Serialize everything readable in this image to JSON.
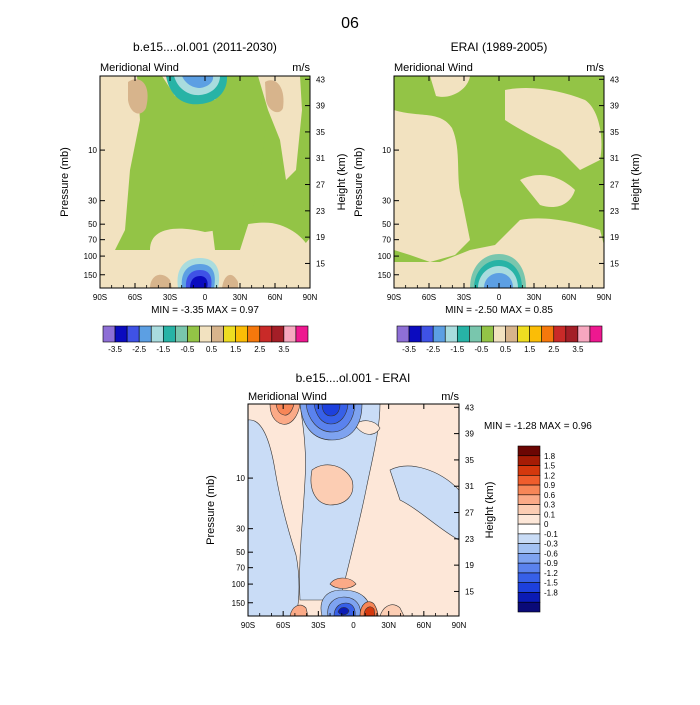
{
  "figure_title": "06",
  "colors": {
    "abs_scale": [
      "#8e6fd6",
      "#0b0bbf",
      "#3f52e6",
      "#5c9fe3",
      "#a9dcde",
      "#27b3a6",
      "#79c6ad",
      "#93c446",
      "#f2e2c0",
      "#d7b48c",
      "#eedd21",
      "#fbbd06",
      "#f5780c",
      "#c92a28",
      "#a41e27",
      "#f7a7bf",
      "#ee1890"
    ],
    "diff_scale": [
      "#0a0a78",
      "#0b1bb4",
      "#1d40dd",
      "#3760e8",
      "#5a82ee",
      "#7ea3f0",
      "#a3c2f3",
      "#c9dcf6",
      "#ffffff",
      "#fde7d8",
      "#fccdb3",
      "#fbaa87",
      "#f78657",
      "#ef5d2c",
      "#d4380d",
      "#a51c05",
      "#6b0603"
    ]
  },
  "panels": [
    {
      "id": "left",
      "title": "b.e15....ol.001 (2011-2030)",
      "left_label": "Meridional Wind",
      "right_label": "m/s",
      "stats": "MIN = -3.35  MAX =  0.97"
    },
    {
      "id": "right",
      "title": "ERAI (1989-2005)",
      "left_label": "Meridional Wind",
      "right_label": "m/s",
      "stats": "MIN = -2.50  MAX =  0.85"
    },
    {
      "id": "diff",
      "title": "b.e15....ol.001 - ERAI",
      "left_label": "Meridional Wind",
      "right_label": "m/s",
      "stats": "MIN = -1.28  MAX =  0.96"
    }
  ],
  "chart_data": [
    {
      "type": "heatmap",
      "title": "b.e15....ol.001 (2011-2030)",
      "xlabel": "",
      "ylabel": "Pressure (mb)",
      "y2label": "Height (km)",
      "x_ticks": [
        "90S",
        "60S",
        "30S",
        "0",
        "30N",
        "60N",
        "90N"
      ],
      "x_values": [
        -90,
        -60,
        -30,
        0,
        30,
        60,
        90
      ],
      "y_ticks": [
        "10",
        "30",
        "50",
        "70",
        "100",
        "150"
      ],
      "y_values": [
        10,
        30,
        50,
        70,
        100,
        150
      ],
      "y2_ticks": [
        "43",
        "39",
        "35",
        "31",
        "27",
        "23",
        "19",
        "15"
      ],
      "colorbar_levels": [
        "-3.5",
        "-2.5",
        "-1.5",
        "-0.5",
        "0.5",
        "1.5",
        "2.5",
        "3.5"
      ],
      "min": -3.35,
      "max": 0.97
    },
    {
      "type": "heatmap",
      "title": "ERAI (1989-2005)",
      "xlabel": "",
      "ylabel": "Pressure (mb)",
      "y2label": "Height (km)",
      "x_ticks": [
        "90S",
        "60S",
        "30S",
        "0",
        "30N",
        "60N",
        "90N"
      ],
      "x_values": [
        -90,
        -60,
        -30,
        0,
        30,
        60,
        90
      ],
      "y_ticks": [
        "10",
        "30",
        "50",
        "70",
        "100",
        "150"
      ],
      "y_values": [
        10,
        30,
        50,
        70,
        100,
        150
      ],
      "y2_ticks": [
        "43",
        "39",
        "35",
        "31",
        "27",
        "23",
        "19",
        "15"
      ],
      "colorbar_levels": [
        "-3.5",
        "-2.5",
        "-1.5",
        "-0.5",
        "0.5",
        "1.5",
        "2.5",
        "3.5"
      ],
      "min": -2.5,
      "max": 0.85
    },
    {
      "type": "heatmap",
      "title": "b.e15....ol.001 - ERAI",
      "xlabel": "",
      "ylabel": "Pressure (mb)",
      "y2label": "Height (km)",
      "x_ticks": [
        "90S",
        "60S",
        "30S",
        "0",
        "30N",
        "60N",
        "90N"
      ],
      "x_values": [
        -90,
        -60,
        -30,
        0,
        30,
        60,
        90
      ],
      "y_ticks": [
        "10",
        "30",
        "50",
        "70",
        "100",
        "150"
      ],
      "y_values": [
        10,
        30,
        50,
        70,
        100,
        150
      ],
      "y2_ticks": [
        "43",
        "39",
        "35",
        "31",
        "27",
        "23",
        "19",
        "15"
      ],
      "colorbar_levels": [
        "1.8",
        "1.5",
        "1.2",
        "0.9",
        "0.6",
        "0.3",
        "0.1",
        "0",
        "-0.1",
        "-0.3",
        "-0.6",
        "-0.9",
        "-1.2",
        "-1.5",
        "-1.8"
      ],
      "min": -1.28,
      "max": 0.96
    }
  ]
}
